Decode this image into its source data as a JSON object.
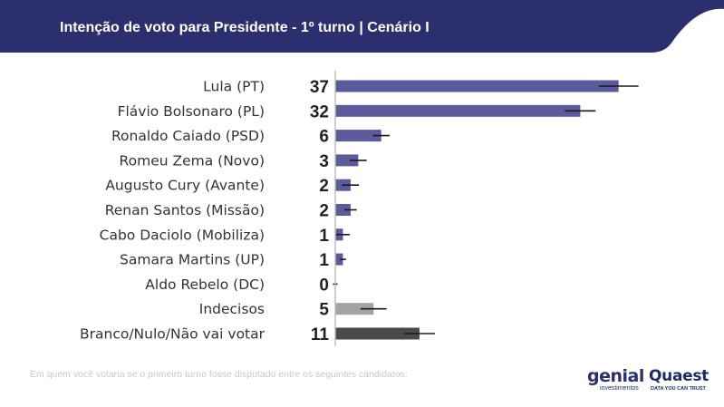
{
  "header": {
    "title": "Intenção de voto para Presidente - 1º turno | Cenário I",
    "color": "#2b2f6e"
  },
  "chart_data": {
    "type": "bar",
    "orientation": "horizontal",
    "title": "Intenção de voto para Presidente - 1º turno | Cenário I",
    "xlabel": "",
    "ylabel": "",
    "xlim": [
      0,
      40
    ],
    "grid": false,
    "legend": "none",
    "error_bars": true,
    "categories": [
      "Lula (PT)",
      "Flávio Bolsonaro (PL)",
      "Ronaldo Caiado (PSD)",
      "Romeu Zema (Novo)",
      "Augusto Cury (Avante)",
      "Renan Santos (Missão)",
      "Cabo Daciolo (Mobiliza)",
      "Samara Martins (UP)",
      "Aldo Rebelo (DC)",
      "Indecisos",
      "Branco/Nulo/Não vai votar"
    ],
    "values": [
      37,
      32,
      6,
      3,
      2,
      2,
      1,
      1,
      0,
      5,
      11
    ],
    "value_labels": [
      "37",
      "32",
      "6",
      "3",
      "2",
      "2",
      "1",
      "1",
      "0",
      "5",
      "11"
    ],
    "error_margin": [
      2.6,
      2.0,
      1.1,
      1.1,
      1.1,
      0.8,
      0.9,
      0.4,
      0.3,
      1.7,
      2.0
    ],
    "bar_colors": [
      "#5b5a9c",
      "#5b5a9c",
      "#5b5a9c",
      "#5b5a9c",
      "#5b5a9c",
      "#5b5a9c",
      "#5b5a9c",
      "#5b5a9c",
      "#5b5a9c",
      "#a3a3a3",
      "#4a4a4a"
    ]
  },
  "footnote": "Em quem você votaria se o primeiro turno fosse disputado entre os seguintes candidatos:",
  "logos": {
    "genial": {
      "name": "genial",
      "sub": "investimentos"
    },
    "quaest": {
      "name": "Quaest",
      "sub": "DATA YOU CAN TRUST"
    }
  }
}
